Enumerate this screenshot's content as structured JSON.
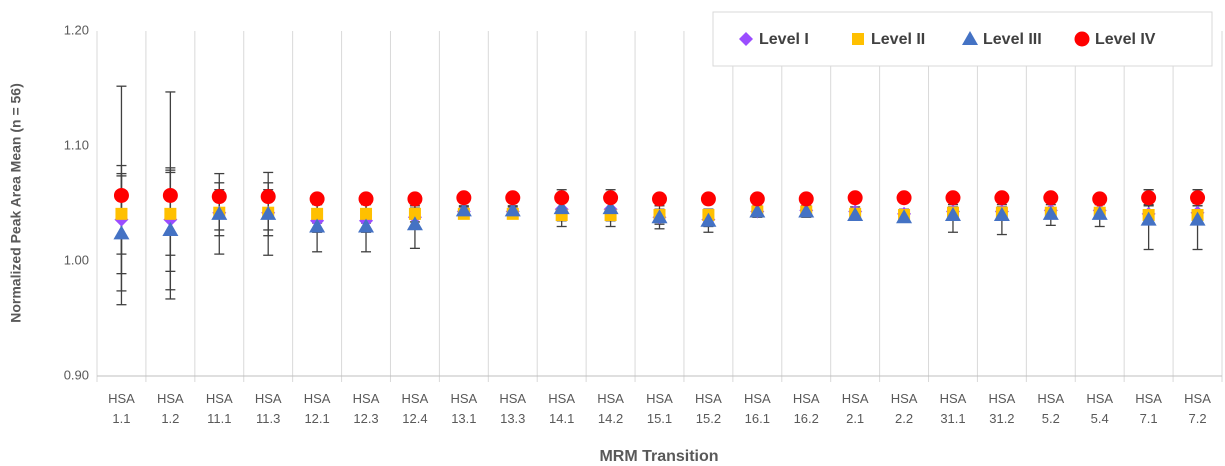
{
  "chart_data": {
    "type": "scatter",
    "y_label": "Normalized Peak Area Mean (n = 56)",
    "x_label": "MRM Transition",
    "categories": [
      "HSA 1.1",
      "HSA 1.2",
      "HSA 11.1",
      "HSA 11.3",
      "HSA 12.1",
      "HSA 12.3",
      "HSA 12.4",
      "HSA 13.1",
      "HSA 13.3",
      "HSA 14.1",
      "HSA 14.2",
      "HSA 15.1",
      "HSA 15.2",
      "HSA 16.1",
      "HSA 16.2",
      "HSA 2.1",
      "HSA 2.2",
      "HSA 31.1",
      "HSA 31.2",
      "HSA 5.2",
      "HSA 5.4",
      "HSA 7.1",
      "HSA 7.2"
    ],
    "ylim": [
      0.9,
      1.2
    ],
    "yticks": [
      {
        "value": 0.9,
        "label": "0.90"
      },
      {
        "value": 1.0,
        "label": "1.00"
      },
      {
        "value": 1.1,
        "label": "1.10"
      },
      {
        "value": 1.2,
        "label": "1.20"
      }
    ],
    "grid": "x",
    "legend": "top-right",
    "series": [
      {
        "name": "Level I",
        "color": "#9b4dff",
        "marker": "diamond",
        "values": [
          1.036,
          1.036,
          1.042,
          1.042,
          1.035,
          1.035,
          1.038,
          1.043,
          1.043,
          1.045,
          1.045,
          1.038,
          1.036,
          1.043,
          1.044,
          1.043,
          1.041,
          1.043,
          1.043,
          1.044,
          1.044,
          1.041,
          1.042
        ],
        "errors": [
          0.047,
          0.045,
          0.02,
          0.02,
          0.01,
          0.01,
          0.008,
          0.004,
          0.004,
          0.008,
          0.008,
          0.006,
          0.006,
          0.004,
          0.004,
          0.004,
          0.004,
          0.006,
          0.006,
          0.005,
          0.005,
          0.008,
          0.008
        ]
      },
      {
        "name": "Level II",
        "color": "#ffc000",
        "marker": "square",
        "values": [
          1.041,
          1.041,
          1.042,
          1.042,
          1.041,
          1.041,
          1.041,
          1.041,
          1.041,
          1.04,
          1.04,
          1.04,
          1.04,
          1.043,
          1.043,
          1.041,
          1.04,
          1.042,
          1.042,
          1.042,
          1.042,
          1.04,
          1.04
        ],
        "errors": [
          0.035,
          0.036,
          0.015,
          0.015,
          0.008,
          0.008,
          0.007,
          0.003,
          0.003,
          0.005,
          0.005,
          0.005,
          0.005,
          0.003,
          0.003,
          0.003,
          0.003,
          0.005,
          0.005,
          0.004,
          0.004,
          0.008,
          0.008
        ]
      },
      {
        "name": "Level III",
        "color": "#4472c4",
        "marker": "triangle",
        "values": [
          1.024,
          1.027,
          1.041,
          1.041,
          1.03,
          1.03,
          1.032,
          1.044,
          1.044,
          1.046,
          1.046,
          1.038,
          1.035,
          1.043,
          1.043,
          1.04,
          1.038,
          1.04,
          1.04,
          1.041,
          1.041,
          1.036,
          1.036
        ],
        "errors": [
          0.05,
          0.052,
          0.035,
          0.036,
          0.022,
          0.022,
          0.021,
          0.004,
          0.004,
          0.016,
          0.016,
          0.01,
          0.01,
          0.005,
          0.005,
          0.004,
          0.004,
          0.015,
          0.017,
          0.01,
          0.011,
          0.026,
          0.026
        ]
      },
      {
        "name": "Level IV",
        "color": "#ff0000",
        "marker": "circle",
        "values": [
          1.057,
          1.057,
          1.056,
          1.056,
          1.054,
          1.054,
          1.054,
          1.055,
          1.055,
          1.055,
          1.055,
          1.054,
          1.054,
          1.054,
          1.054,
          1.055,
          1.055,
          1.055,
          1.055,
          1.055,
          1.054,
          1.055,
          1.055
        ],
        "errors": [
          0.095,
          0.09,
          0.012,
          0.012,
          0.004,
          0.004,
          0.003,
          0.003,
          0.003,
          0.003,
          0.003,
          0.003,
          0.003,
          0.003,
          0.003,
          0.003,
          0.003,
          0.003,
          0.003,
          0.003,
          0.003,
          0.007,
          0.007
        ]
      }
    ]
  }
}
